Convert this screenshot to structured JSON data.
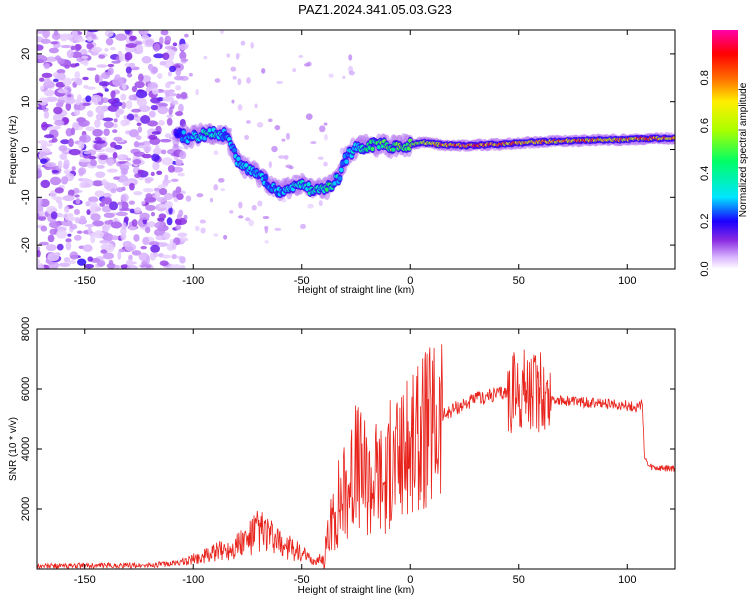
{
  "title": "PAZ1.2024.341.05.03.G23",
  "chart_data": [
    {
      "type": "heatmap",
      "title": "PAZ1.2024.341.05.03.G23",
      "xlabel": "Height of straight line (km)",
      "ylabel": "Frequency (Hz)",
      "xlim": [
        -172,
        122
      ],
      "ylim": [
        -25,
        25
      ],
      "xticks": [
        -150,
        -100,
        -50,
        0,
        50,
        100
      ],
      "yticks": [
        -20,
        -10,
        0,
        10,
        20
      ],
      "colorbar": {
        "label": "Normalized spectral amplitude",
        "range": [
          0,
          1
        ],
        "ticks": [
          0.0,
          0.2,
          0.4,
          0.6,
          0.8
        ],
        "colormap": [
          "#ffffff",
          "#d9b3ff",
          "#8a2be2",
          "#1a00ff",
          "#00e5ff",
          "#00ff66",
          "#aaff00",
          "#ffee00",
          "#ff6a00",
          "#ff0000",
          "#ff00aa"
        ]
      },
      "ridge": [
        {
          "x": -108,
          "freq": 3,
          "amp": 0.2
        },
        {
          "x": -100,
          "freq": 2.5,
          "amp": 0.35
        },
        {
          "x": -92,
          "freq": 3.5,
          "amp": 0.4
        },
        {
          "x": -85,
          "freq": 3,
          "amp": 0.3
        },
        {
          "x": -80,
          "freq": -2,
          "amp": 0.3
        },
        {
          "x": -75,
          "freq": -4,
          "amp": 0.35
        },
        {
          "x": -68,
          "freq": -6,
          "amp": 0.3
        },
        {
          "x": -60,
          "freq": -9,
          "amp": 0.3
        },
        {
          "x": -52,
          "freq": -7,
          "amp": 0.35
        },
        {
          "x": -45,
          "freq": -8.5,
          "amp": 0.4
        },
        {
          "x": -38,
          "freq": -8,
          "amp": 0.45
        },
        {
          "x": -33,
          "freq": -6,
          "amp": 0.35
        },
        {
          "x": -30,
          "freq": -2,
          "amp": 0.3
        },
        {
          "x": -25,
          "freq": 0.5,
          "amp": 0.35
        },
        {
          "x": -15,
          "freq": 1,
          "amp": 0.5
        },
        {
          "x": -5,
          "freq": 0.5,
          "amp": 0.55
        },
        {
          "x": 5,
          "freq": 1.5,
          "amp": 0.6
        },
        {
          "x": 15,
          "freq": 1,
          "amp": 0.8
        },
        {
          "x": 25,
          "freq": 0.8,
          "amp": 0.9
        },
        {
          "x": 35,
          "freq": 1,
          "amp": 0.85
        },
        {
          "x": 45,
          "freq": 1.2,
          "amp": 0.8
        },
        {
          "x": 55,
          "freq": 1.5,
          "amp": 0.75
        },
        {
          "x": 65,
          "freq": 1.7,
          "amp": 0.8
        },
        {
          "x": 75,
          "freq": 1.8,
          "amp": 0.85
        },
        {
          "x": 85,
          "freq": 2,
          "amp": 0.8
        },
        {
          "x": 95,
          "freq": 2,
          "amp": 0.75
        },
        {
          "x": 105,
          "freq": 2.2,
          "amp": 0.8
        },
        {
          "x": 115,
          "freq": 2.3,
          "amp": 0.85
        },
        {
          "x": 122,
          "freq": 2.3,
          "amp": 0.85
        }
      ]
    },
    {
      "type": "line",
      "xlabel": "Height of straight line (km)",
      "ylabel": "SNR (10 * v/v)",
      "xlim": [
        -172,
        122
      ],
      "ylim": [
        0,
        8000
      ],
      "xticks": [
        -150,
        -100,
        -50,
        0,
        50,
        100
      ],
      "yticks": [
        2000,
        4000,
        6000,
        8000
      ],
      "color": "#e8231c",
      "series": [
        {
          "x": [
            -172,
            -150,
            -120,
            -105,
            -95,
            -85,
            -75,
            -70,
            -66,
            -62,
            -55,
            -50,
            -45,
            -40,
            -36,
            -33,
            -30,
            -27,
            -24,
            -21,
            -18,
            -15,
            -12,
            -9,
            -6,
            -3,
            0,
            3,
            6,
            9,
            12,
            15,
            20,
            25,
            30,
            40,
            45,
            50,
            53,
            56,
            58,
            60,
            62,
            65,
            70,
            80,
            90,
            100,
            105,
            107,
            108,
            110,
            115,
            122
          ],
          "y": [
            100,
            110,
            120,
            220,
            420,
            650,
            950,
            1300,
            1150,
            900,
            700,
            500,
            250,
            350,
            1500,
            2300,
            2700,
            3200,
            3500,
            3100,
            2900,
            3300,
            2800,
            3500,
            3600,
            3900,
            4000,
            4200,
            4500,
            4700,
            4900,
            5100,
            5350,
            5500,
            5650,
            5850,
            5900,
            5900,
            6000,
            5850,
            6000,
            5900,
            5850,
            5700,
            5600,
            5550,
            5500,
            5450,
            5400,
            5500,
            3700,
            3400,
            3350,
            3350
          ]
        }
      ]
    }
  ]
}
